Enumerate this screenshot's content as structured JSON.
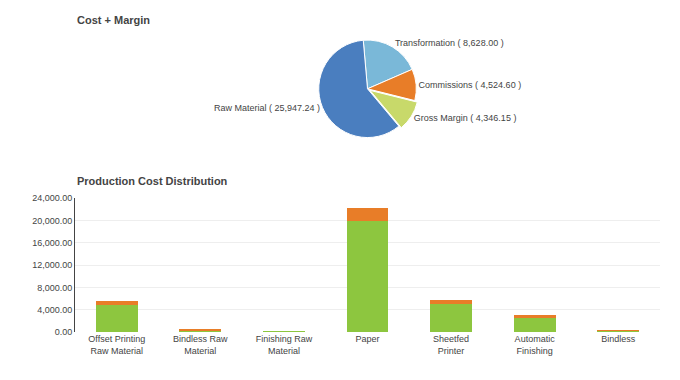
{
  "chart_data": [
    {
      "type": "pie",
      "title": "Cost + Margin",
      "categories": [
        "Transformation ( 8,628.00 )",
        "Commissions ( 4,524.60 )",
        "Gross Margin ( 4,346.15 )",
        "Raw Material ( 25,947.24 )"
      ],
      "values": [
        8628,
        4524.6,
        4346.15,
        25947.24
      ],
      "colors": [
        "#7ab8d8",
        "#e87d28",
        "#c8d96a",
        "#4a7ebf"
      ]
    },
    {
      "type": "bar",
      "title": "Production Cost Distribution",
      "categories": [
        "Offset Printing\nRaw Material",
        "Bindless Raw\nMaterial",
        "Finishing Raw\nMaterial",
        "Paper",
        "Sheetfed\nPrinter",
        "Automatic\nFinishing",
        "Bindless"
      ],
      "series": [
        {
          "color": "#8dc63f",
          "values": [
            4800,
            300,
            50,
            20000,
            5000,
            2500,
            200
          ]
        },
        {
          "color": "#e87d28",
          "values": [
            800,
            50,
            0,
            2200,
            800,
            500,
            100
          ]
        }
      ],
      "stacked": true,
      "ylim": [
        0,
        24000
      ],
      "yticks": [
        {
          "value": 0,
          "label": "0.00"
        },
        {
          "value": 4000,
          "label": "4,000.00"
        },
        {
          "value": 8000,
          "label": "8,000.00"
        },
        {
          "value": 12000,
          "label": "12,000.00"
        },
        {
          "value": 16000,
          "label": "16,000.00"
        },
        {
          "value": 20000,
          "label": "20,000.00"
        },
        {
          "value": 24000,
          "label": "24,000.00"
        }
      ],
      "grid": true
    }
  ]
}
